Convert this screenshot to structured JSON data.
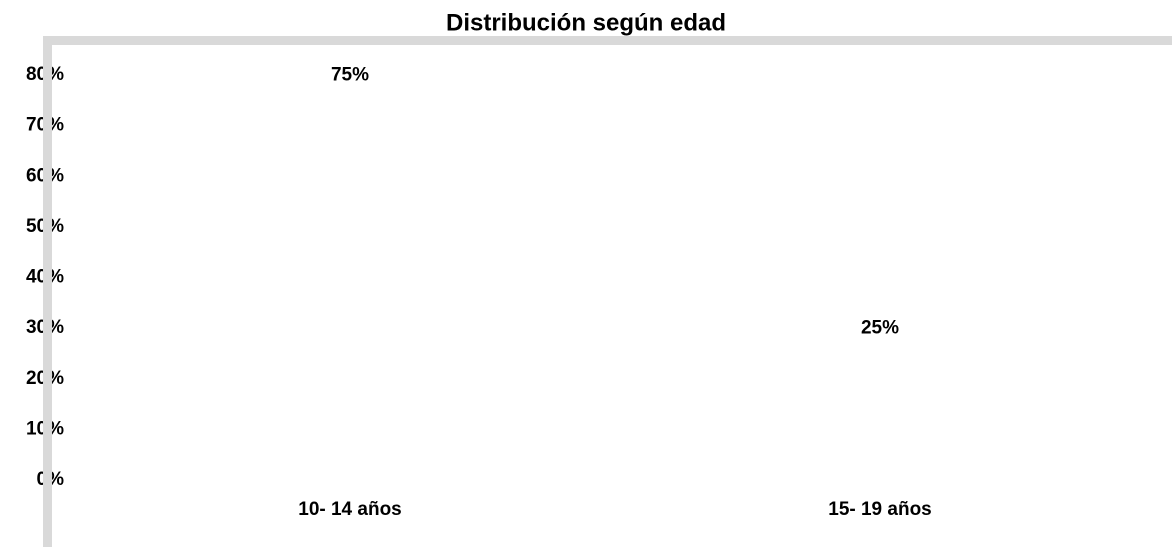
{
  "chart_data": {
    "type": "bar",
    "title": "Distribución según edad",
    "categories": [
      "10- 14 años",
      "15- 19 años"
    ],
    "values": [
      75,
      25
    ],
    "value_labels": [
      "75%",
      "25%"
    ],
    "color": "#ffffff",
    "ylim": [
      0,
      80
    ],
    "yticks": [
      {
        "value": 0,
        "label": "0%"
      },
      {
        "value": 10,
        "label": "10%"
      },
      {
        "value": 20,
        "label": "20%"
      },
      {
        "value": 30,
        "label": "30%"
      },
      {
        "value": 40,
        "label": "40%"
      },
      {
        "value": 50,
        "label": "50%"
      },
      {
        "value": 60,
        "label": "60%"
      },
      {
        "value": 70,
        "label": "70%"
      },
      {
        "value": 80,
        "label": "80%"
      }
    ],
    "grid": false
  }
}
